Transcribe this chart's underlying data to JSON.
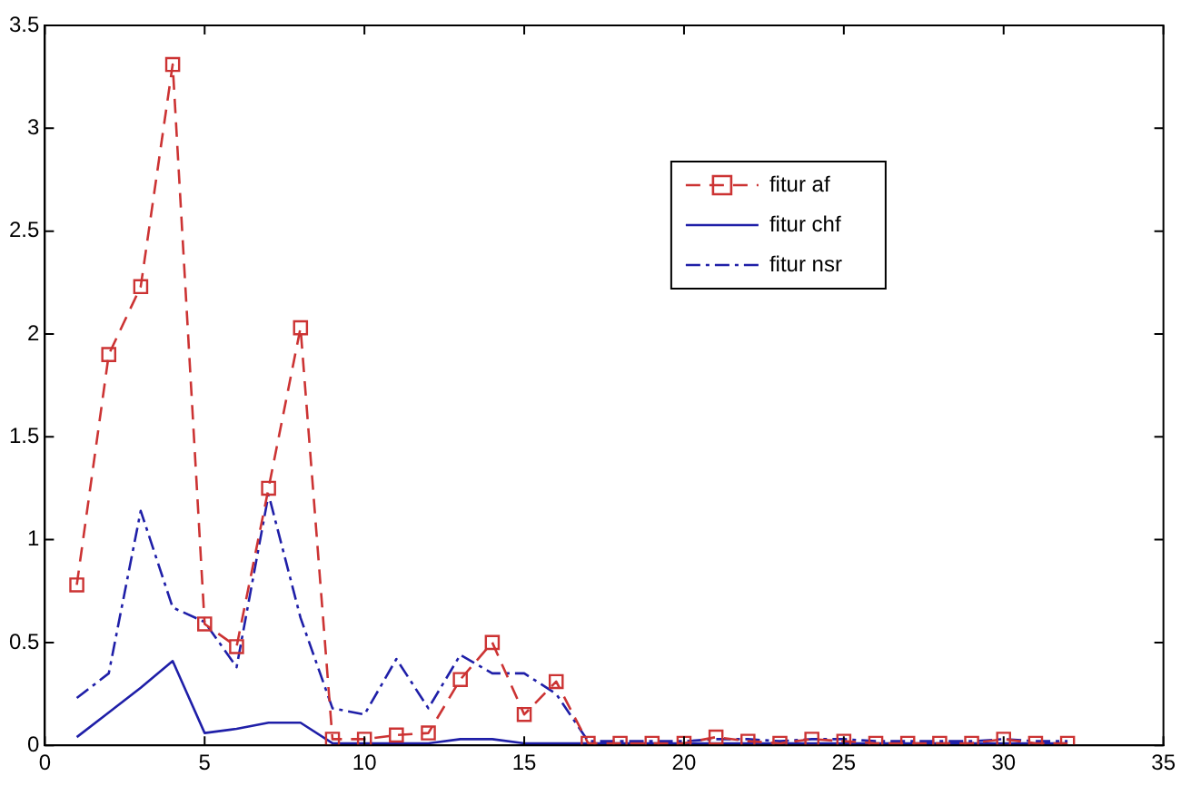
{
  "chart_data": {
    "type": "line",
    "x": [
      1,
      2,
      3,
      4,
      5,
      6,
      7,
      8,
      9,
      10,
      11,
      12,
      13,
      14,
      15,
      16,
      17,
      18,
      19,
      20,
      21,
      22,
      23,
      24,
      25,
      26,
      27,
      28,
      29,
      30,
      31,
      32
    ],
    "series": [
      {
        "name": "fitur af",
        "color": "#cc3333",
        "marker": "square",
        "line_style": "dashed",
        "values": [
          0.78,
          1.9,
          2.23,
          3.31,
          0.59,
          0.48,
          1.25,
          2.03,
          0.03,
          0.03,
          0.05,
          0.06,
          0.32,
          0.5,
          0.15,
          0.31,
          0.01,
          0.01,
          0.01,
          0.01,
          0.04,
          0.02,
          0.01,
          0.03,
          0.02,
          0.01,
          0.01,
          0.01,
          0.01,
          0.03,
          0.01,
          0.01
        ]
      },
      {
        "name": "fitur chf",
        "color": "#1f1fa8",
        "marker": "none",
        "line_style": "solid",
        "values": [
          0.04,
          0.16,
          0.28,
          0.41,
          0.06,
          0.08,
          0.11,
          0.11,
          0.01,
          0.01,
          0.01,
          0.01,
          0.03,
          0.03,
          0.01,
          0.01,
          0.01,
          0.01,
          0.01,
          0.01,
          0.01,
          0.01,
          0.01,
          0.01,
          0.01,
          0.01,
          0.01,
          0.01,
          0.01,
          0.01,
          0.01,
          0.01
        ]
      },
      {
        "name": "fitur nsr",
        "color": "#1f1fa8",
        "marker": "none",
        "line_style": "dashdot",
        "values": [
          0.23,
          0.35,
          1.14,
          0.67,
          0.6,
          0.38,
          1.22,
          0.62,
          0.18,
          0.15,
          0.42,
          0.18,
          0.44,
          0.35,
          0.35,
          0.25,
          0.02,
          0.02,
          0.02,
          0.02,
          0.03,
          0.03,
          0.02,
          0.03,
          0.03,
          0.02,
          0.02,
          0.02,
          0.02,
          0.03,
          0.02,
          0.02
        ]
      }
    ],
    "xlim": [
      0,
      35
    ],
    "xticks": [
      0,
      5,
      10,
      15,
      20,
      25,
      30,
      35
    ],
    "ylim": [
      0,
      3.5
    ],
    "yticks": [
      0,
      0.5,
      1,
      1.5,
      2,
      2.5,
      3,
      3.5
    ],
    "grid": false,
    "legend": "top right"
  }
}
